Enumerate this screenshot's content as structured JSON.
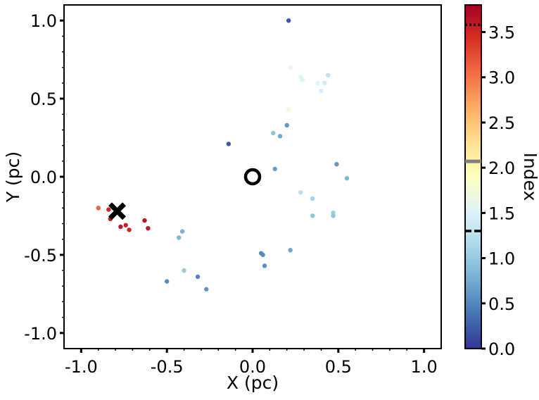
{
  "chart_data": {
    "type": "scatter",
    "xlabel": "X (pc)",
    "ylabel": "Y (pc)",
    "xlim": [
      -1.1,
      1.1
    ],
    "ylim": [
      -1.1,
      1.1
    ],
    "x_ticks": [
      -1.0,
      -0.5,
      0.0,
      0.5,
      1.0
    ],
    "x_tick_labels": [
      "-1.0",
      "-0.5",
      "0.0",
      "0.5",
      "1.0"
    ],
    "y_ticks": [
      1.0,
      0.5,
      0.0,
      -0.5,
      -1.0
    ],
    "y_tick_labels": [
      "1.0",
      "0.5",
      "0.0",
      "-0.5",
      "-1.0"
    ],
    "grid": false,
    "colorbar": {
      "label": "Index",
      "range": [
        0.0,
        3.8
      ],
      "ticks": [
        0.0,
        0.5,
        1.0,
        1.5,
        2.0,
        2.5,
        3.0,
        3.5
      ],
      "tick_labels": [
        "0.0",
        "0.5",
        "1.0",
        "1.5",
        "2.0",
        "2.5",
        "3.0",
        "3.5"
      ],
      "colormap": "RdYlBu_r",
      "reference_lines": [
        {
          "value": 3.58,
          "style": "dotted",
          "color": "#000000"
        },
        {
          "value": 2.07,
          "style": "solid",
          "color": "#808080"
        },
        {
          "value": 1.3,
          "style": "dashed",
          "color": "#000000"
        }
      ]
    },
    "points": [
      {
        "x": 0.21,
        "y": 1.0,
        "index": 0.2
      },
      {
        "x": 0.22,
        "y": 0.7,
        "index": 1.6
      },
      {
        "x": 0.28,
        "y": 0.64,
        "index": 1.55
      },
      {
        "x": 0.29,
        "y": 0.62,
        "index": 1.5
      },
      {
        "x": 0.44,
        "y": 0.65,
        "index": 1.3
      },
      {
        "x": 0.38,
        "y": 0.6,
        "index": 1.55
      },
      {
        "x": 0.42,
        "y": 0.6,
        "index": 1.4
      },
      {
        "x": 0.4,
        "y": 0.55,
        "index": 1.45
      },
      {
        "x": 0.21,
        "y": 0.43,
        "index": 1.75
      },
      {
        "x": 0.2,
        "y": 0.33,
        "index": 0.6
      },
      {
        "x": 0.12,
        "y": 0.28,
        "index": 0.95
      },
      {
        "x": 0.16,
        "y": 0.26,
        "index": 0.75
      },
      {
        "x": -0.14,
        "y": 0.21,
        "index": 0.2
      },
      {
        "x": 0.13,
        "y": 0.05,
        "index": 0.65
      },
      {
        "x": 0.49,
        "y": 0.08,
        "index": 0.6
      },
      {
        "x": 0.55,
        "y": -0.01,
        "index": 0.85
      },
      {
        "x": 0.28,
        "y": -0.1,
        "index": 1.25
      },
      {
        "x": 0.35,
        "y": -0.14,
        "index": 1.1
      },
      {
        "x": 0.47,
        "y": -0.23,
        "index": 1.05
      },
      {
        "x": 0.47,
        "y": -0.25,
        "index": 0.95
      },
      {
        "x": 0.35,
        "y": -0.25,
        "index": 0.95
      },
      {
        "x": -0.9,
        "y": -0.2,
        "index": 3.1
      },
      {
        "x": -0.84,
        "y": -0.21,
        "index": 3.5
      },
      {
        "x": -0.81,
        "y": -0.24,
        "index": 3.6
      },
      {
        "x": -0.83,
        "y": -0.27,
        "index": 3.55
      },
      {
        "x": -0.77,
        "y": -0.32,
        "index": 3.6
      },
      {
        "x": -0.74,
        "y": -0.31,
        "index": 3.55
      },
      {
        "x": -0.72,
        "y": -0.34,
        "index": 3.5
      },
      {
        "x": -0.63,
        "y": -0.28,
        "index": 3.65
      },
      {
        "x": -0.61,
        "y": -0.33,
        "index": 3.6
      },
      {
        "x": -0.41,
        "y": -0.35,
        "index": 0.8
      },
      {
        "x": -0.43,
        "y": -0.39,
        "index": 0.85
      },
      {
        "x": 0.05,
        "y": -0.49,
        "index": 0.5
      },
      {
        "x": 0.06,
        "y": -0.5,
        "index": 0.55
      },
      {
        "x": 0.22,
        "y": -0.47,
        "index": 0.7
      },
      {
        "x": 0.07,
        "y": -0.57,
        "index": 0.55
      },
      {
        "x": -0.4,
        "y": -0.6,
        "index": 1.0
      },
      {
        "x": -0.32,
        "y": -0.64,
        "index": 0.5
      },
      {
        "x": -0.5,
        "y": -0.67,
        "index": 0.55
      },
      {
        "x": -0.27,
        "y": -0.72,
        "index": 0.6
      }
    ],
    "markers": [
      {
        "name": "open-circle-marker",
        "x": 0.0,
        "y": 0.0,
        "symbol": "open-circle"
      },
      {
        "name": "x-marker",
        "x": -0.79,
        "y": -0.22,
        "symbol": "x"
      }
    ]
  }
}
